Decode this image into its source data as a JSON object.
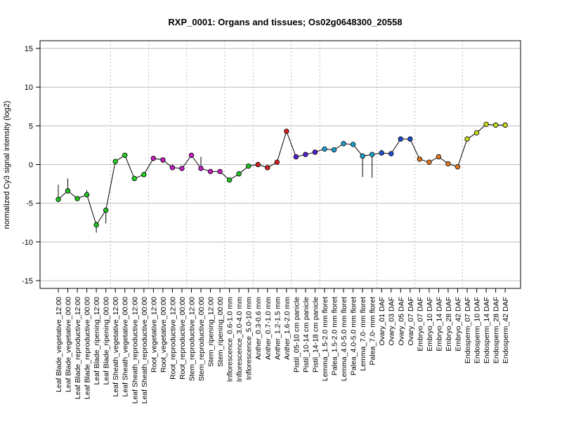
{
  "chart_data": {
    "type": "line",
    "title": "RXP_0001: Organs and tissues; Os02g0648300_20558",
    "xlabel": "",
    "ylabel": "normalized Cy3 signal intensity (log2)",
    "ylim": [
      -16,
      16
    ],
    "yticks": [
      -15,
      -10,
      -5,
      0,
      5,
      10,
      15
    ],
    "grid": true,
    "categories": [
      "Leaf Blade_vegetative_12:00",
      "Leaf Blade_vegetative_00:00",
      "Leaf Blade_reproductive_12:00",
      "Leaf Blade_reproductive_00:00",
      "Leaf Blade_ripening_12:00",
      "Leaf Blade_ripening_00:00",
      "Leaf Sheath_vegetative_12:00",
      "Leaf Sheath_vegetative_00:00",
      "Leaf Sheath_reproductive_12:00",
      "Leaf Sheath_reproductive_00:00",
      "Root_vegetative_12:00",
      "Root_vegetative_00:00",
      "Root_reproductive_12:00",
      "Root_reproductive_00:00",
      "Stem_reproductive_12:00",
      "Stem_reproductive_00:00",
      "Stem_ripening_12:00",
      "Stem_ripening_00:00",
      "Inflorescence_0.6-1.0 mm",
      "Inflorescence_3.0-4.0 mm",
      "Inflorescence_5.0-10 mm",
      "Anther_0.3-0.6 mm",
      "Anther_0.7-1.0 mm",
      "Anther_1.2-1.5 mm",
      "Anther_1.6-2.0 mm",
      "Pistil_05-10 cm panicle",
      "Pistil_10-14 cm panicle",
      "Pistil_14-18 cm panicle",
      "Lemma_1.5-2.0 mm floret",
      "Palea_1.5-2.0 mm floret",
      "Lemma_4.0-5.0 mm floret",
      "Palea_4.0-5.0 mm floret",
      "Lemma_7.0- mm floret",
      "Palea_7.0- mm floret",
      "Ovary_01 DAF",
      "Ovary_03 DAF",
      "Ovary_05 DAF",
      "Ovary_07 DAF",
      "Embryo_07 DAF",
      "Embryo_10 DAF",
      "Embryo_14 DAF",
      "Embryo_28 DAF",
      "Embryo_42 DAF",
      "Endosperm_07 DAF",
      "Endosperm_10 DAF",
      "Endosperm_14 DAF",
      "Endosperm_28 DAF",
      "Endosperm_42 DAF"
    ],
    "values": [
      -4.5,
      -3.4,
      -4.4,
      -3.9,
      -7.8,
      -5.9,
      0.4,
      1.2,
      -1.8,
      -1.3,
      0.8,
      0.6,
      -0.4,
      -0.5,
      1.2,
      -0.5,
      -0.9,
      -0.9,
      -2.0,
      -1.2,
      -0.2,
      0.0,
      -0.4,
      0.3,
      4.3,
      1.0,
      1.3,
      1.6,
      2.0,
      1.9,
      2.7,
      2.6,
      1.1,
      1.3,
      1.5,
      1.4,
      3.3,
      3.3,
      0.7,
      0.3,
      1.0,
      0.1,
      -0.3,
      3.3,
      4.1,
      5.2,
      5.1,
      5.1
    ],
    "errors": [
      [
        -4.6,
        -2.6
      ],
      [
        -3.7,
        -1.8
      ],
      [
        -4.4,
        -4.4
      ],
      [
        -4.1,
        -3.3
      ],
      [
        -8.8,
        -7.4
      ],
      [
        -7.6,
        -5.9
      ],
      [
        0.4,
        0.4
      ],
      [
        1.2,
        1.2
      ],
      [
        -1.8,
        -1.8
      ],
      [
        -1.3,
        -1.3
      ],
      [
        0.8,
        0.8
      ],
      [
        0.2,
        0.6
      ],
      [
        -0.4,
        0.0
      ],
      [
        -0.5,
        -0.5
      ],
      [
        1.2,
        1.2
      ],
      [
        -0.5,
        1.0
      ],
      [
        -0.9,
        -0.9
      ],
      [
        -0.9,
        -0.9
      ],
      [
        -2.0,
        -2.0
      ],
      [
        -1.2,
        -1.2
      ],
      [
        -0.2,
        -0.2
      ],
      [
        0.0,
        0.0
      ],
      [
        -0.4,
        -0.4
      ],
      [
        0.3,
        0.3
      ],
      [
        4.0,
        4.6
      ],
      [
        1.0,
        1.0
      ],
      [
        1.3,
        1.3
      ],
      [
        1.6,
        1.6
      ],
      [
        1.7,
        2.3
      ],
      [
        1.9,
        1.9
      ],
      [
        2.7,
        2.7
      ],
      [
        2.6,
        2.6
      ],
      [
        -1.6,
        1.1
      ],
      [
        -1.7,
        1.3
      ],
      [
        1.2,
        1.9
      ],
      [
        1.4,
        1.4
      ],
      [
        3.3,
        3.3
      ],
      [
        3.3,
        3.3
      ],
      [
        0.7,
        0.7
      ],
      [
        0.3,
        0.3
      ],
      [
        0.8,
        1.3
      ],
      [
        0.1,
        0.1
      ],
      [
        -0.3,
        -0.3
      ],
      [
        3.3,
        3.3
      ],
      [
        3.8,
        4.4
      ],
      [
        5.2,
        5.2
      ],
      [
        5.1,
        5.1
      ],
      [
        5.1,
        5.1
      ]
    ],
    "point_colors": [
      "#22c022",
      "#22c022",
      "#22c022",
      "#22c022",
      "#22c022",
      "#22c022",
      "#22d022",
      "#22d022",
      "#22d022",
      "#22d022",
      "#c020c0",
      "#c020c0",
      "#c020c0",
      "#c020c0",
      "#c020c0",
      "#c020c0",
      "#c020c0",
      "#c020c0",
      "#22c022",
      "#22c022",
      "#22c022",
      "#d42020",
      "#d42020",
      "#d42020",
      "#d42020",
      "#5520d0",
      "#5520d0",
      "#5520d0",
      "#20a0d0",
      "#20a0d0",
      "#20a0d0",
      "#20a0d0",
      "#20a0d0",
      "#20a0d0",
      "#2050d0",
      "#2050d0",
      "#2050d0",
      "#2050d0",
      "#e07820",
      "#e07820",
      "#e07820",
      "#e07820",
      "#e07820",
      "#c8d820",
      "#c8d820",
      "#c8d820",
      "#c8d820",
      "#c8d820"
    ],
    "group_separators_after": [
      5,
      9,
      13,
      17,
      20,
      24,
      27,
      33,
      37,
      42
    ],
    "line_color": "#000000",
    "grid_color": "#bbbbbb"
  }
}
